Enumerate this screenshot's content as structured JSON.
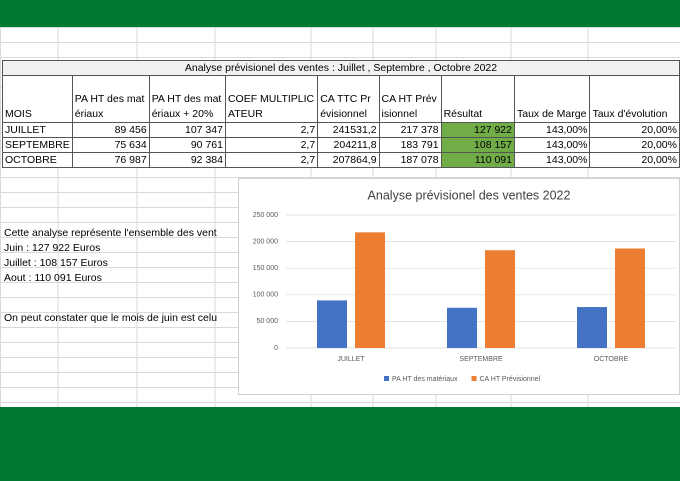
{
  "table": {
    "title": "Analyse prévisionel des ventes : Juillet , Septembre , Octobre 2022",
    "headers": [
      "MOIS",
      "PA HT des matériaux",
      "PA HT des matériaux + 20%",
      "COEF MULTIPLICATEUR",
      "CA TTC Prévisionnel",
      "CA HT Prévisionnel",
      "Résultat",
      "Taux de Marge",
      "Taux d'évolution"
    ],
    "rows": [
      [
        "JUILLET",
        "89 456",
        "107 347",
        "2,7",
        "241531,2",
        "217 378",
        "127 922",
        "143,00%",
        "20,00%"
      ],
      [
        "SEPTEMBRE",
        "75 634",
        "90 761",
        "2,7",
        "204211,8",
        "183 791",
        "108 157",
        "143,00%",
        "20,00%"
      ],
      [
        "OCTOBRE",
        "76 987",
        "92 384",
        "2,7",
        "207864,9",
        "187 078",
        "110 091",
        "143,00%",
        "20,00%"
      ]
    ]
  },
  "notes": [
    "Cette analyse représente l'ensemble des vent",
    "Juin : 127 922 Euros",
    "Juillet : 108 157 Euros",
    "Aout : 110 091 Euros",
    "On peut constater que le mois de juin est celu"
  ],
  "chart_data": {
    "type": "bar",
    "title": "Analyse prévisionel des ventes 2022",
    "categories": [
      "JUILLET",
      "SEPTEMBRE",
      "OCTOBRE"
    ],
    "series": [
      {
        "name": "PA HT des matériaux",
        "color": "#4472c4",
        "values": [
          89456,
          75634,
          76987
        ]
      },
      {
        "name": "CA HT Prévisionnel",
        "color": "#ed7d31",
        "values": [
          217378,
          183791,
          187078
        ]
      }
    ],
    "ylim": [
      0,
      250000
    ],
    "yticks": [
      0,
      {
        "value": 50000,
        "label": "50 000"
      },
      {
        "value": 100000,
        "label": "100 000"
      },
      {
        "value": 150000,
        "label": "150 000"
      },
      {
        "value": 200000,
        "label": "200 000"
      },
      {
        "value": 250000,
        "label": "250 000"
      }
    ],
    "grid": true,
    "legend": "bottom"
  }
}
